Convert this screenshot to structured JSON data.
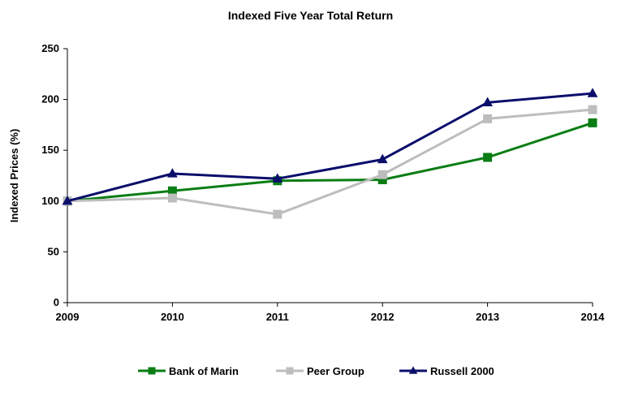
{
  "chart_data": {
    "type": "line",
    "title": "Indexed Five Year Total Return",
    "xlabel": "",
    "ylabel": "Indexed Prices (%)",
    "x": [
      "2009",
      "2010",
      "2011",
      "2012",
      "2013",
      "2014"
    ],
    "ylim": [
      0,
      250
    ],
    "yticks": [
      0,
      50,
      100,
      150,
      200,
      250
    ],
    "grid": false,
    "legend": "bottom",
    "series": [
      {
        "name": "Bank of Marin",
        "values": [
          100,
          110,
          120,
          121,
          143,
          177
        ],
        "color": "#0a7d14",
        "marker": "square"
      },
      {
        "name": "Peer Group",
        "values": [
          100,
          103,
          87,
          126,
          181,
          190
        ],
        "color": "#bdbdbd",
        "marker": "square"
      },
      {
        "name": "Russell 2000",
        "values": [
          100,
          127,
          122,
          141,
          197,
          206
        ],
        "color": "#0b0e6b",
        "marker": "triangle"
      }
    ]
  }
}
